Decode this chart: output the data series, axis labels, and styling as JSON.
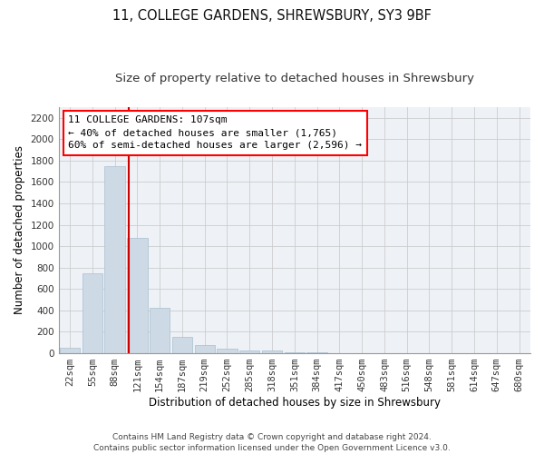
{
  "title1": "11, COLLEGE GARDENS, SHREWSBURY, SY3 9BF",
  "title2": "Size of property relative to detached houses in Shrewsbury",
  "xlabel": "Distribution of detached houses by size in Shrewsbury",
  "ylabel": "Number of detached properties",
  "footer1": "Contains HM Land Registry data © Crown copyright and database right 2024.",
  "footer2": "Contains public sector information licensed under the Open Government Licence v3.0.",
  "bin_labels": [
    "22sqm",
    "55sqm",
    "88sqm",
    "121sqm",
    "154sqm",
    "187sqm",
    "219sqm",
    "252sqm",
    "285sqm",
    "318sqm",
    "351sqm",
    "384sqm",
    "417sqm",
    "450sqm",
    "483sqm",
    "516sqm",
    "548sqm",
    "581sqm",
    "614sqm",
    "647sqm",
    "680sqm"
  ],
  "bar_values": [
    50,
    750,
    1750,
    1075,
    425,
    150,
    75,
    40,
    30,
    25,
    10,
    5,
    2,
    1,
    1,
    0,
    0,
    0,
    0,
    0,
    0
  ],
  "bar_color": "#cdd9e5",
  "bar_edgecolor": "#a8bfcf",
  "vline_x": 2.62,
  "vline_color": "#cc0000",
  "annotation_box_text": "11 COLLEGE GARDENS: 107sqm\n← 40% of detached houses are smaller (1,765)\n60% of semi-detached houses are larger (2,596) →",
  "ylim": [
    0,
    2300
  ],
  "yticks": [
    0,
    200,
    400,
    600,
    800,
    1000,
    1200,
    1400,
    1600,
    1800,
    2000,
    2200
  ],
  "grid_color": "#cccccc",
  "background_color": "#eef2f7",
  "title1_fontsize": 10.5,
  "title2_fontsize": 9.5,
  "xlabel_fontsize": 8.5,
  "ylabel_fontsize": 8.5,
  "tick_fontsize": 7.5,
  "ann_fontsize": 8.0,
  "footer_fontsize": 6.5
}
